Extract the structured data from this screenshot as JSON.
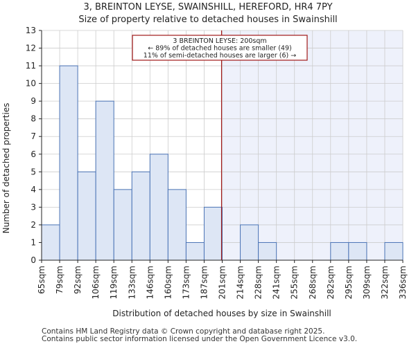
{
  "title_line1": "3, BREINTON LEYSE, SWAINSHILL, HEREFORD, HR4 7PY",
  "title_line2": "Size of property relative to detached houses in Swainshill",
  "footer_line1": "Contains HM Land Registry data © Crown copyright and database right 2025.",
  "footer_line2": "Contains public sector information licensed under the Open Government Licence v3.0.",
  "chart_data": {
    "type": "bar",
    "xlabel": "Distribution of detached houses by size in Swainshill",
    "ylabel": "Number of detached properties",
    "ylim": [
      0,
      13
    ],
    "yticks": [
      0,
      1,
      2,
      3,
      4,
      5,
      6,
      7,
      8,
      9,
      10,
      11,
      12,
      13
    ],
    "bin_edges": [
      65,
      79,
      92,
      106,
      119,
      133,
      146,
      160,
      173,
      187,
      201,
      214,
      228,
      241,
      255,
      268,
      282,
      295,
      309,
      322,
      336
    ],
    "tick_labels": [
      "65sqm",
      "79sqm",
      "92sqm",
      "106sqm",
      "119sqm",
      "133sqm",
      "146sqm",
      "160sqm",
      "173sqm",
      "187sqm",
      "201sqm",
      "214sqm",
      "228sqm",
      "241sqm",
      "255sqm",
      "268sqm",
      "282sqm",
      "295sqm",
      "309sqm",
      "322sqm",
      "336sqm"
    ],
    "values": [
      2,
      11,
      5,
      9,
      4,
      5,
      6,
      4,
      1,
      3,
      0,
      2,
      1,
      0,
      0,
      0,
      1,
      1,
      0,
      1
    ],
    "marker": {
      "value": 200,
      "label_line1": "3 BREINTON LEYSE: 200sqm",
      "label_line2": "← 89% of detached houses are smaller (49)",
      "label_line3": "11% of semi-detached houses are larger (6) →"
    },
    "colors": {
      "bar_fill": "#dde6f5",
      "bar_edge": "#4a73b5",
      "marker": "#a01818",
      "shade": "#eef1fb",
      "grid": "#cccccc"
    }
  }
}
